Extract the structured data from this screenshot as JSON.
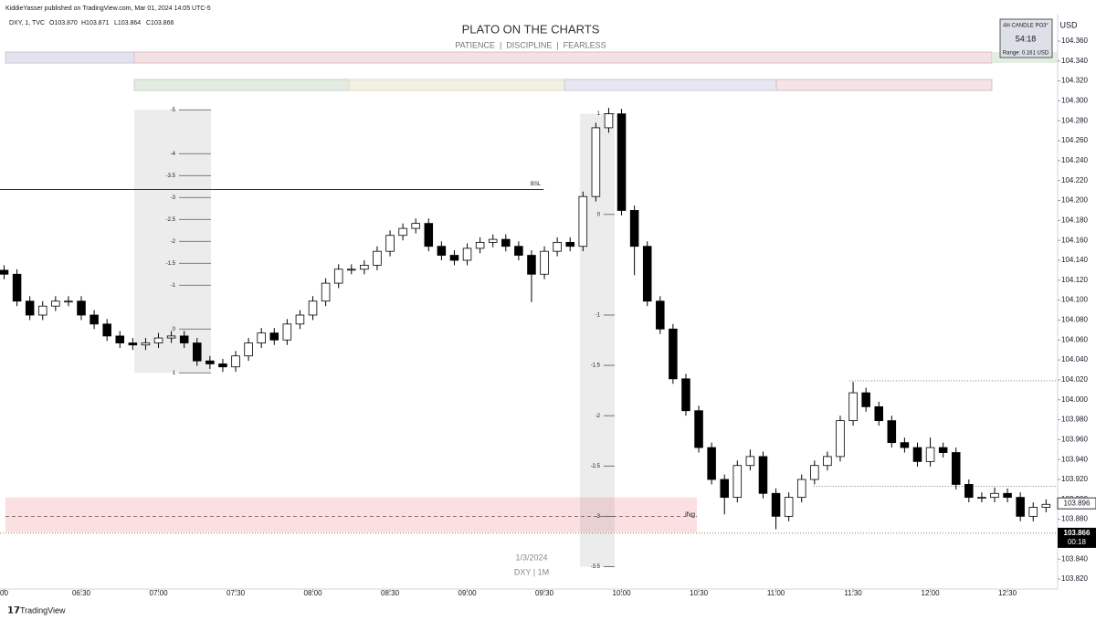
{
  "chart_data": {
    "type": "candlestick",
    "header": "KiddieYasser published on TradingView.com, Mar 01, 2024 14:05 UTC-5",
    "symbol": "DXY, 1, TVC",
    "ohlc_labels": [
      "O103.870",
      "H103.871",
      "L103.864",
      "C103.866"
    ],
    "title": "PLATO ON THE CHARTS",
    "subtitle": "PATIENCE  |  DISCIPLINE  |  FEARLESS",
    "panel": {
      "title": "4H CANDLE PO3°",
      "timer": "54:18",
      "range": "Range: 0.161 USD"
    },
    "currency": "USD",
    "watermark": [
      "1/3/2024",
      "DXY | 1M"
    ],
    "brand": "TradingView",
    "x": [
      360,
      365,
      370,
      375,
      380,
      385,
      390,
      395,
      400,
      405,
      410,
      415,
      420,
      425,
      430,
      435,
      440,
      445,
      450,
      455,
      460,
      465,
      470,
      475,
      480,
      485,
      490,
      495,
      500,
      505,
      510,
      515,
      520,
      525,
      530,
      535,
      540,
      545,
      550,
      555,
      560,
      565,
      570,
      575,
      580,
      585,
      590,
      595,
      600,
      605,
      610,
      615,
      620,
      625,
      630,
      635,
      640,
      645,
      650,
      655,
      660,
      665,
      670,
      675,
      680,
      685,
      690,
      695,
      700,
      705,
      710,
      715,
      720,
      725,
      730,
      735,
      740,
      745,
      750,
      755,
      760,
      765
    ],
    "open": [
      104.13,
      104.126,
      104.099,
      104.085,
      104.094,
      104.099,
      104.099,
      104.085,
      104.076,
      104.064,
      104.057,
      104.055,
      104.057,
      104.062,
      104.064,
      104.057,
      104.039,
      104.036,
      104.033,
      104.044,
      104.057,
      104.067,
      104.06,
      104.076,
      104.085,
      104.099,
      104.117,
      104.131,
      104.131,
      104.135,
      104.149,
      104.165,
      104.172,
      104.177,
      104.154,
      104.145,
      104.14,
      104.152,
      104.158,
      104.161,
      104.154,
      104.145,
      104.126,
      104.149,
      104.158,
      104.154,
      104.204,
      104.273,
      104.287,
      104.19,
      104.154,
      104.099,
      104.071,
      104.021,
      103.989,
      103.952,
      103.92,
      103.902,
      103.934,
      103.943,
      103.906,
      103.883,
      103.902,
      103.92,
      103.934,
      103.943,
      103.979,
      104.007,
      103.993,
      103.979,
      103.957,
      103.952,
      103.938,
      103.952,
      103.947,
      103.915,
      103.902,
      103.902,
      103.906,
      103.902,
      103.883,
      103.892
    ],
    "high": [
      104.135,
      104.131,
      104.104,
      104.099,
      104.104,
      104.104,
      104.104,
      104.09,
      104.081,
      104.069,
      104.062,
      104.062,
      104.067,
      104.069,
      104.069,
      104.062,
      104.044,
      104.041,
      104.049,
      104.062,
      104.072,
      104.072,
      104.081,
      104.09,
      104.104,
      104.122,
      104.136,
      104.136,
      104.14,
      104.154,
      104.17,
      104.177,
      104.182,
      104.182,
      104.159,
      104.15,
      104.157,
      104.163,
      104.166,
      104.166,
      104.159,
      104.15,
      104.154,
      104.163,
      104.163,
      104.209,
      104.278,
      104.293,
      104.292,
      104.195,
      104.159,
      104.104,
      104.076,
      104.026,
      103.994,
      103.957,
      103.925,
      103.939,
      103.95,
      103.948,
      103.911,
      103.907,
      103.925,
      103.939,
      103.948,
      103.984,
      104.018,
      104.012,
      103.998,
      103.984,
      103.962,
      103.957,
      103.962,
      103.957,
      103.952,
      103.92,
      103.907,
      103.912,
      103.911,
      103.907,
      103.897,
      103.9
    ],
    "low": [
      104.121,
      104.094,
      104.08,
      104.08,
      104.089,
      104.094,
      104.08,
      104.071,
      104.059,
      104.052,
      104.05,
      104.05,
      104.052,
      104.057,
      104.052,
      104.034,
      104.031,
      104.028,
      104.028,
      104.039,
      104.052,
      104.055,
      104.055,
      104.071,
      104.08,
      104.094,
      104.112,
      104.126,
      104.126,
      104.13,
      104.144,
      104.16,
      104.167,
      104.149,
      104.14,
      104.135,
      104.135,
      104.147,
      104.153,
      104.149,
      104.14,
      104.098,
      104.121,
      104.144,
      104.149,
      104.149,
      104.199,
      104.268,
      104.185,
      104.125,
      104.094,
      104.066,
      104.016,
      103.984,
      103.947,
      103.915,
      103.885,
      103.897,
      103.929,
      103.901,
      103.87,
      103.878,
      103.897,
      103.915,
      103.929,
      103.938,
      103.974,
      103.988,
      103.974,
      103.952,
      103.947,
      103.933,
      103.933,
      103.942,
      103.91,
      103.897,
      103.897,
      103.897,
      103.897,
      103.878,
      103.878,
      103.887
    ],
    "close": [
      104.126,
      104.099,
      104.085,
      104.094,
      104.099,
      104.099,
      104.085,
      104.076,
      104.064,
      104.057,
      104.055,
      104.057,
      104.062,
      104.064,
      104.057,
      104.039,
      104.036,
      104.033,
      104.044,
      104.057,
      104.067,
      104.06,
      104.076,
      104.085,
      104.099,
      104.117,
      104.131,
      104.131,
      104.135,
      104.149,
      104.165,
      104.172,
      104.177,
      104.154,
      104.145,
      104.14,
      104.152,
      104.158,
      104.161,
      104.154,
      104.145,
      104.126,
      104.149,
      104.158,
      104.154,
      104.204,
      104.273,
      104.287,
      104.19,
      104.154,
      104.099,
      104.071,
      104.021,
      103.989,
      103.952,
      103.92,
      103.902,
      103.934,
      103.943,
      103.906,
      103.883,
      103.902,
      103.92,
      103.934,
      103.943,
      103.979,
      104.007,
      103.993,
      103.979,
      103.957,
      103.952,
      103.938,
      103.952,
      103.947,
      103.915,
      103.902,
      103.902,
      103.906,
      103.902,
      103.883,
      103.892,
      103.895
    ],
    "up_color": "#ffffff",
    "down_color": "#000000",
    "xlim": [
      358.4,
      769.5
    ],
    "ylim": [
      103.81,
      104.3875
    ],
    "xticks": [
      {
        "value": 360,
        "label": "00"
      },
      {
        "value": 390,
        "label": "06:30"
      },
      {
        "value": 420,
        "label": "07:00"
      },
      {
        "value": 450,
        "label": "07:30"
      },
      {
        "value": 480,
        "label": "08:00"
      },
      {
        "value": 510,
        "label": "08:30"
      },
      {
        "value": 540,
        "label": "09:00"
      },
      {
        "value": 570,
        "label": "09:30"
      },
      {
        "value": 600,
        "label": "10:00"
      },
      {
        "value": 630,
        "label": "10:30"
      },
      {
        "value": 660,
        "label": "11:00"
      },
      {
        "value": 690,
        "label": "11:30"
      },
      {
        "value": 720,
        "label": "12:00"
      },
      {
        "value": 750,
        "label": "12:30"
      }
    ],
    "yticks": [
      {
        "value": 103.82,
        "label": "103.820"
      },
      {
        "value": 103.84,
        "label": "103.840"
      },
      {
        "value": 103.86,
        "label": "103.860"
      },
      {
        "value": 103.88,
        "label": "103.880"
      },
      {
        "value": 103.9,
        "label": "103.900"
      },
      {
        "value": 103.92,
        "label": "103.920"
      },
      {
        "value": 103.94,
        "label": "103.940"
      },
      {
        "value": 103.96,
        "label": "103.960"
      },
      {
        "value": 103.98,
        "label": "103.980"
      },
      {
        "value": 104,
        "label": "104.000"
      },
      {
        "value": 104.02,
        "label": "104.020"
      },
      {
        "value": 104.04,
        "label": "104.040"
      },
      {
        "value": 104.06,
        "label": "104.060"
      },
      {
        "value": 104.08,
        "label": "104.080"
      },
      {
        "value": 104.1,
        "label": "104.100"
      },
      {
        "value": 104.12,
        "label": "104.120"
      },
      {
        "value": 104.14,
        "label": "104.140"
      },
      {
        "value": 104.16,
        "label": "104.160"
      },
      {
        "value": 104.18,
        "label": "104.180"
      },
      {
        "value": 104.2,
        "label": "104.200"
      },
      {
        "value": 104.22,
        "label": "104.220"
      },
      {
        "value": 104.24,
        "label": "104.240"
      },
      {
        "value": 104.26,
        "label": "104.260"
      },
      {
        "value": 104.28,
        "label": "104.280"
      },
      {
        "value": 104.3,
        "label": "104.300"
      },
      {
        "value": 104.32,
        "label": "104.320"
      },
      {
        "value": 104.34,
        "label": "104.340"
      },
      {
        "value": 104.36,
        "label": "104.360"
      }
    ],
    "fibs": [
      {
        "x": [
          410.6,
          440.4
        ],
        "price_at_1": 104.027,
        "price_at_0": 104.071,
        "levels": [
          -5,
          -4,
          -3.5,
          -3,
          -2.5,
          -2,
          -1.5,
          -1,
          0,
          1
        ]
      },
      {
        "x": [
          583.8,
          597.3
        ],
        "price_at_1": 104.287,
        "price_at_0": 104.186,
        "levels": [
          1,
          0,
          -1,
          -1.5,
          -2,
          -2.5,
          -3,
          -3.5
        ]
      }
    ],
    "lines": [
      {
        "label": "BSL",
        "price": 104.211,
        "x": [
          358.4,
          569.7
        ],
        "style": "solid"
      },
      {
        "price": 104.019,
        "x": [
          688.5,
          769.5
        ],
        "style": "dotted"
      },
      {
        "price": 103.913,
        "x": [
          674.6,
          769.5
        ],
        "style": "dotted"
      },
      {
        "price": 103.866,
        "x": [
          358.4,
          769.5
        ],
        "style": "dotted"
      },
      {
        "price": 103.883,
        "x": [
          360.5,
          629.3
        ],
        "style": "dashed"
      }
    ],
    "zone": {
      "label": "ifvg",
      "top": 103.902,
      "bottom": 103.867,
      "x": [
        360.5,
        629.3
      ],
      "color": "#fcdfe1"
    },
    "last_price": 103.896,
    "close_price": 103.866,
    "countdown": "00:18"
  }
}
